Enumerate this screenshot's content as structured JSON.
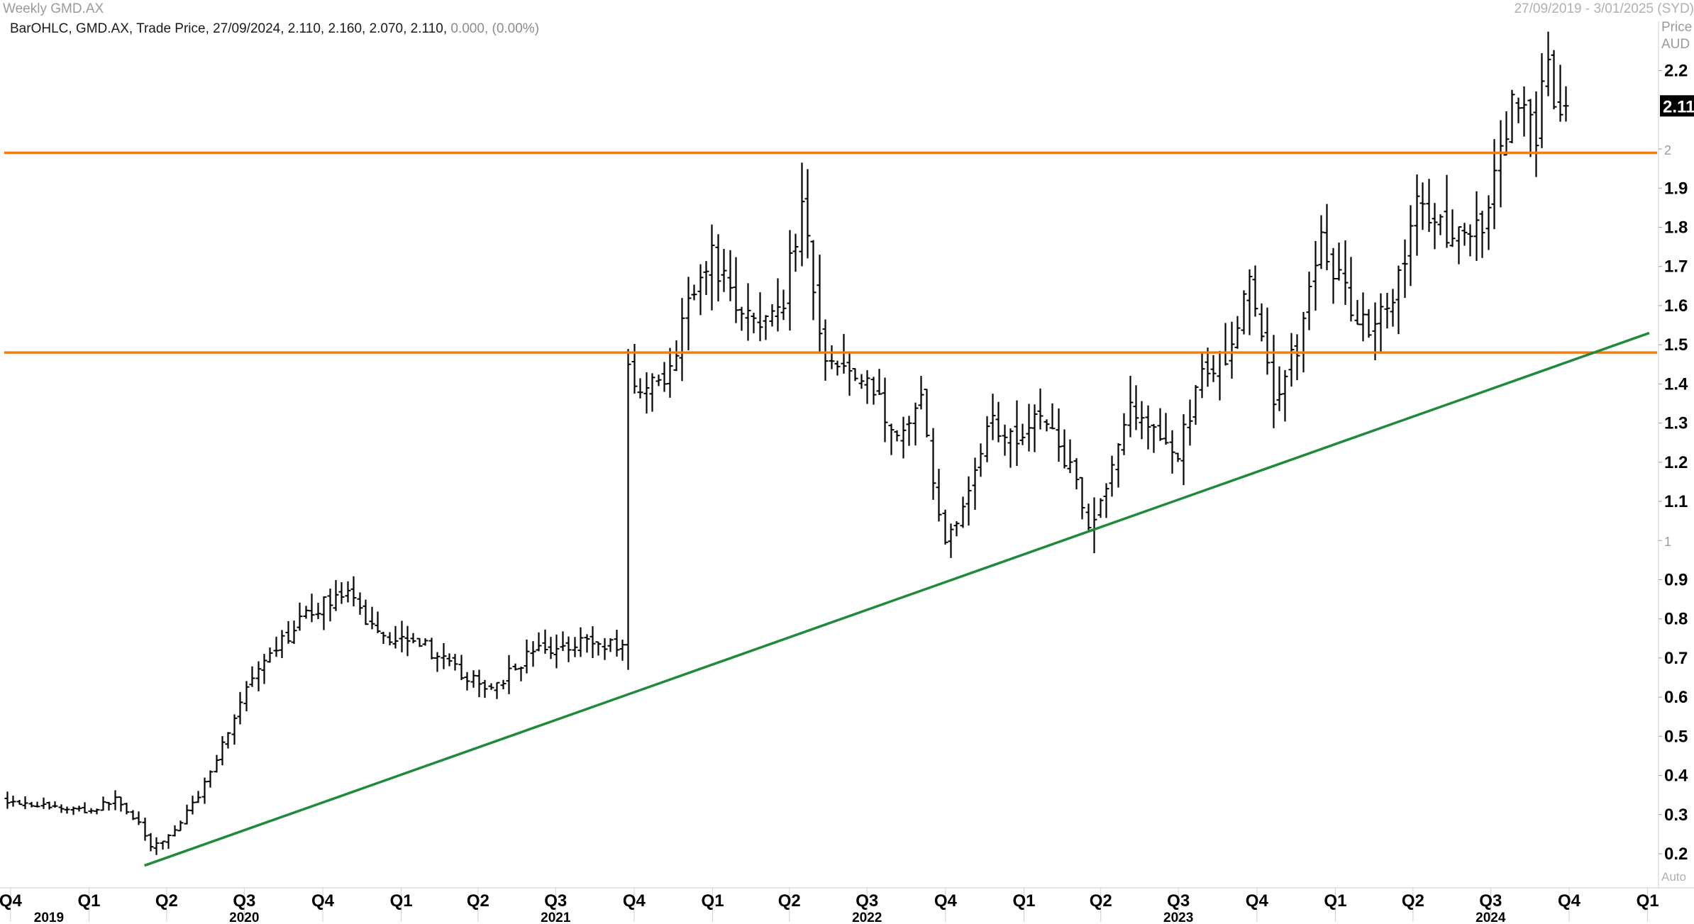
{
  "header": {
    "title": "Weekly GMD.AX",
    "date_range": "27/09/2019 - 3/01/2025 (SYD)",
    "bar_info": "BarOHLC, GMD.AX, Trade Price, 27/09/2024, 2.110, 2.160, 2.070, 2.110,",
    "bar_change": "0.000, (0.00%)",
    "price_label": "Price",
    "currency_label": "AUD",
    "auto_label": "Auto"
  },
  "chart_data": {
    "type": "bar",
    "subtype": "ohlc",
    "title": "Weekly GMD.AX",
    "ylabel": "Price AUD",
    "ylim": [
      0.17,
      2.28
    ],
    "xlim": [
      "2019-09-27",
      "2025-01-03"
    ],
    "y_ticks": [
      "0.2",
      "0.3",
      "0.4",
      "0.5",
      "0.6",
      "0.7",
      "0.8",
      "0.9",
      "1",
      "1.1",
      "1.2",
      "1.3",
      "1.4",
      "1.5",
      "1.6",
      "1.7",
      "1.8",
      "1.9",
      "2",
      "2.2"
    ],
    "last_price_label": "2.11",
    "x_quarter_labels": [
      {
        "label": "Q4",
        "date": "2019-10-01"
      },
      {
        "label": "Q1",
        "date": "2020-01-01"
      },
      {
        "label": "Q2",
        "date": "2020-04-01"
      },
      {
        "label": "Q3",
        "date": "2020-07-01"
      },
      {
        "label": "Q4",
        "date": "2020-10-01"
      },
      {
        "label": "Q1",
        "date": "2021-01-01"
      },
      {
        "label": "Q2",
        "date": "2021-04-01"
      },
      {
        "label": "Q3",
        "date": "2021-07-01"
      },
      {
        "label": "Q4",
        "date": "2021-10-01"
      },
      {
        "label": "Q1",
        "date": "2022-01-01"
      },
      {
        "label": "Q2",
        "date": "2022-04-01"
      },
      {
        "label": "Q3",
        "date": "2022-07-01"
      },
      {
        "label": "Q4",
        "date": "2022-10-01"
      },
      {
        "label": "Q1",
        "date": "2023-01-01"
      },
      {
        "label": "Q2",
        "date": "2023-04-01"
      },
      {
        "label": "Q3",
        "date": "2023-07-01"
      },
      {
        "label": "Q4",
        "date": "2023-10-01"
      },
      {
        "label": "Q1",
        "date": "2024-01-01"
      },
      {
        "label": "Q2",
        "date": "2024-04-01"
      },
      {
        "label": "Q3",
        "date": "2024-07-01"
      },
      {
        "label": "Q4",
        "date": "2024-10-01"
      },
      {
        "label": "Q1",
        "date": "2025-01-01"
      }
    ],
    "x_year_labels": [
      {
        "label": "2019",
        "date": "2019-11-15"
      },
      {
        "label": "2020",
        "date": "2020-07-01"
      },
      {
        "label": "2021",
        "date": "2021-07-01"
      },
      {
        "label": "2022",
        "date": "2022-07-01"
      },
      {
        "label": "2023",
        "date": "2023-07-01"
      },
      {
        "label": "2024",
        "date": "2024-07-01"
      }
    ],
    "horizontal_lines": [
      {
        "name": "resistance",
        "value": 1.99,
        "color": "#f07d1a"
      },
      {
        "name": "support",
        "value": 1.48,
        "color": "#f07d1a"
      }
    ],
    "trendlines": [
      {
        "name": "uptrend",
        "start": {
          "date": "2020-03-06",
          "value": 0.17
        },
        "end": {
          "date": "2025-01-03",
          "value": 1.53
        },
        "color": "#1f8a3c"
      }
    ],
    "ohlc_path_weekly_close": [
      {
        "date": "2019-09-27",
        "close": 0.34
      },
      {
        "date": "2019-11-22",
        "close": 0.32
      },
      {
        "date": "2020-01-10",
        "close": 0.31
      },
      {
        "date": "2020-02-07",
        "close": 0.34
      },
      {
        "date": "2020-03-06",
        "close": 0.28
      },
      {
        "date": "2020-03-20",
        "close": 0.21
      },
      {
        "date": "2020-04-17",
        "close": 0.26
      },
      {
        "date": "2020-05-15",
        "close": 0.35
      },
      {
        "date": "2020-06-12",
        "close": 0.48
      },
      {
        "date": "2020-07-10",
        "close": 0.62
      },
      {
        "date": "2020-08-07",
        "close": 0.7
      },
      {
        "date": "2020-09-04",
        "close": 0.78
      },
      {
        "date": "2020-10-02",
        "close": 0.83
      },
      {
        "date": "2020-10-30",
        "close": 0.87
      },
      {
        "date": "2020-11-27",
        "close": 0.8
      },
      {
        "date": "2020-12-25",
        "close": 0.75
      },
      {
        "date": "2021-01-22",
        "close": 0.76
      },
      {
        "date": "2021-02-19",
        "close": 0.7
      },
      {
        "date": "2021-03-19",
        "close": 0.66
      },
      {
        "date": "2021-04-16",
        "close": 0.62
      },
      {
        "date": "2021-05-14",
        "close": 0.66
      },
      {
        "date": "2021-06-11",
        "close": 0.72
      },
      {
        "date": "2021-07-09",
        "close": 0.72
      },
      {
        "date": "2021-08-06",
        "close": 0.75
      },
      {
        "date": "2021-09-03",
        "close": 0.73
      },
      {
        "date": "2021-09-24",
        "close": 0.74
      },
      {
        "date": "2021-10-01",
        "close": 1.45
      },
      {
        "date": "2021-10-22",
        "close": 1.38
      },
      {
        "date": "2021-11-19",
        "close": 1.42
      },
      {
        "date": "2021-12-17",
        "close": 1.65
      },
      {
        "date": "2022-01-07",
        "close": 1.72
      },
      {
        "date": "2022-02-04",
        "close": 1.6
      },
      {
        "date": "2022-03-04",
        "close": 1.58
      },
      {
        "date": "2022-04-01",
        "close": 1.62
      },
      {
        "date": "2022-04-22",
        "close": 1.85
      },
      {
        "date": "2022-05-20",
        "close": 1.45
      },
      {
        "date": "2022-06-17",
        "close": 1.43
      },
      {
        "date": "2022-07-15",
        "close": 1.38
      },
      {
        "date": "2022-08-12",
        "close": 1.25
      },
      {
        "date": "2022-09-09",
        "close": 1.35
      },
      {
        "date": "2022-10-07",
        "close": 0.98
      },
      {
        "date": "2022-11-04",
        "close": 1.15
      },
      {
        "date": "2022-12-02",
        "close": 1.3
      },
      {
        "date": "2022-12-30",
        "close": 1.27
      },
      {
        "date": "2023-01-27",
        "close": 1.33
      },
      {
        "date": "2023-02-24",
        "close": 1.22
      },
      {
        "date": "2023-03-24",
        "close": 1.05
      },
      {
        "date": "2023-04-14",
        "close": 1.12
      },
      {
        "date": "2023-05-12",
        "close": 1.36
      },
      {
        "date": "2023-06-09",
        "close": 1.3
      },
      {
        "date": "2023-07-07",
        "close": 1.22
      },
      {
        "date": "2023-08-04",
        "close": 1.45
      },
      {
        "date": "2023-09-01",
        "close": 1.45
      },
      {
        "date": "2023-09-29",
        "close": 1.65
      },
      {
        "date": "2023-10-27",
        "close": 1.38
      },
      {
        "date": "2023-11-24",
        "close": 1.48
      },
      {
        "date": "2023-12-22",
        "close": 1.78
      },
      {
        "date": "2024-01-19",
        "close": 1.63
      },
      {
        "date": "2024-02-16",
        "close": 1.55
      },
      {
        "date": "2024-03-15",
        "close": 1.62
      },
      {
        "date": "2024-04-12",
        "close": 1.85
      },
      {
        "date": "2024-05-10",
        "close": 1.82
      },
      {
        "date": "2024-06-07",
        "close": 1.75
      },
      {
        "date": "2024-07-05",
        "close": 1.85
      },
      {
        "date": "2024-08-02",
        "close": 2.1
      },
      {
        "date": "2024-08-30",
        "close": 2.05
      },
      {
        "date": "2024-09-13",
        "close": 2.2
      },
      {
        "date": "2024-09-27",
        "close": 2.11
      }
    ]
  }
}
